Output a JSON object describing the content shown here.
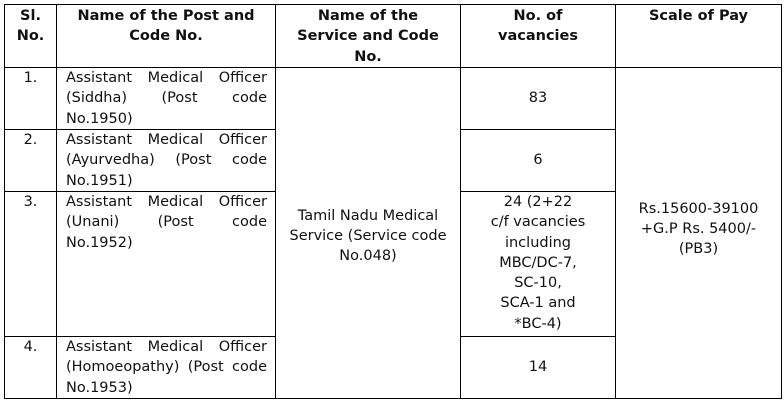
{
  "headers": [
    "Sl. No.",
    "Name of the Post and Code No.",
    "Name of the Service and Code No.",
    "No. of vacancies",
    "Scale of Pay"
  ],
  "rows": [
    {
      "sl": "1.",
      "post": "Assistant Medical Officer (Siddha) (Post code No.1950)",
      "vacancies": "83"
    },
    {
      "sl": "2.",
      "post": "Assistant Medical Officer (Ayurvedha) (Post code No.1951)",
      "vacancies": "6"
    },
    {
      "sl": "3.",
      "post": "Assistant Medical Officer (Unani) (Post code No.1952)",
      "vacancies": [
        "24 (2+22",
        "c/f vacancies",
        "including",
        "MBC/DC-7,",
        "SC-10,",
        "SCA-1 and",
        "*BC-4)"
      ]
    },
    {
      "sl": "4.",
      "post": "Assistant Medical Officer (Homoeopathy) (Post code No.1953)",
      "vacancies": "14"
    }
  ],
  "service": "Tamil Nadu Medical Service (Service code No.048)",
  "scale_of_pay": "Rs.15600-39100 +G.P Rs. 5400/- (PB3)"
}
